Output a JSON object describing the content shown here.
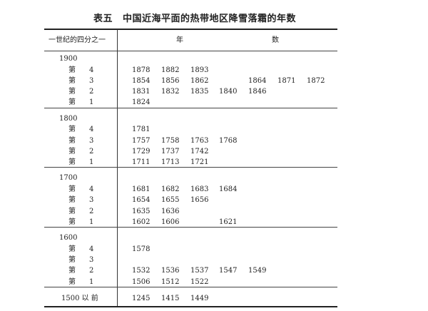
{
  "title": {
    "label": "表五",
    "text": "中国近海平面的热带地区降雪落霜的年数"
  },
  "header": {
    "col1": "一世纪的四分之一",
    "col2a": "年",
    "col2b": "数"
  },
  "quarter_prefix": "第",
  "groups": [
    {
      "century": "1900",
      "rows": [
        {
          "quarter": "4",
          "years": [
            "1878",
            "1882",
            "1893"
          ]
        },
        {
          "quarter": "3",
          "years": [
            "1854",
            "1856",
            "1862",
            "",
            "1864",
            "1871",
            "1872"
          ]
        },
        {
          "quarter": "2",
          "years": [
            "1831",
            "1832",
            "1835",
            "1840",
            "1846"
          ]
        },
        {
          "quarter": "1",
          "years": [
            "1824"
          ]
        }
      ]
    },
    {
      "century": "1800",
      "rows": [
        {
          "quarter": "4",
          "years": [
            "1781"
          ]
        },
        {
          "quarter": "3",
          "years": [
            "1757",
            "1758",
            "1763",
            "1768"
          ]
        },
        {
          "quarter": "2",
          "years": [
            "1729",
            "1737",
            "1742"
          ]
        },
        {
          "quarter": "1",
          "years": [
            "1711",
            "1713",
            "1721"
          ]
        }
      ]
    },
    {
      "century": "1700",
      "rows": [
        {
          "quarter": "4",
          "years": [
            "1681",
            "1682",
            "1683",
            "1684"
          ]
        },
        {
          "quarter": "3",
          "years": [
            "1654",
            "1655",
            "1656"
          ]
        },
        {
          "quarter": "2",
          "years": [
            "1635",
            "1636"
          ]
        },
        {
          "quarter": "1",
          "years": [
            "1602",
            "1606",
            "",
            "1621"
          ]
        }
      ]
    },
    {
      "century": "1600",
      "rows": [
        {
          "quarter": "4",
          "years": [
            "1578"
          ]
        },
        {
          "quarter": "3",
          "years": []
        },
        {
          "quarter": "2",
          "years": [
            "1532",
            "1536",
            "1537",
            "1547",
            "1549"
          ]
        },
        {
          "quarter": "1",
          "years": [
            "1506",
            "1512",
            "1522"
          ]
        }
      ]
    }
  ],
  "before": {
    "label": "1500 以 前",
    "years": [
      "1245",
      "1415",
      "1449"
    ]
  }
}
